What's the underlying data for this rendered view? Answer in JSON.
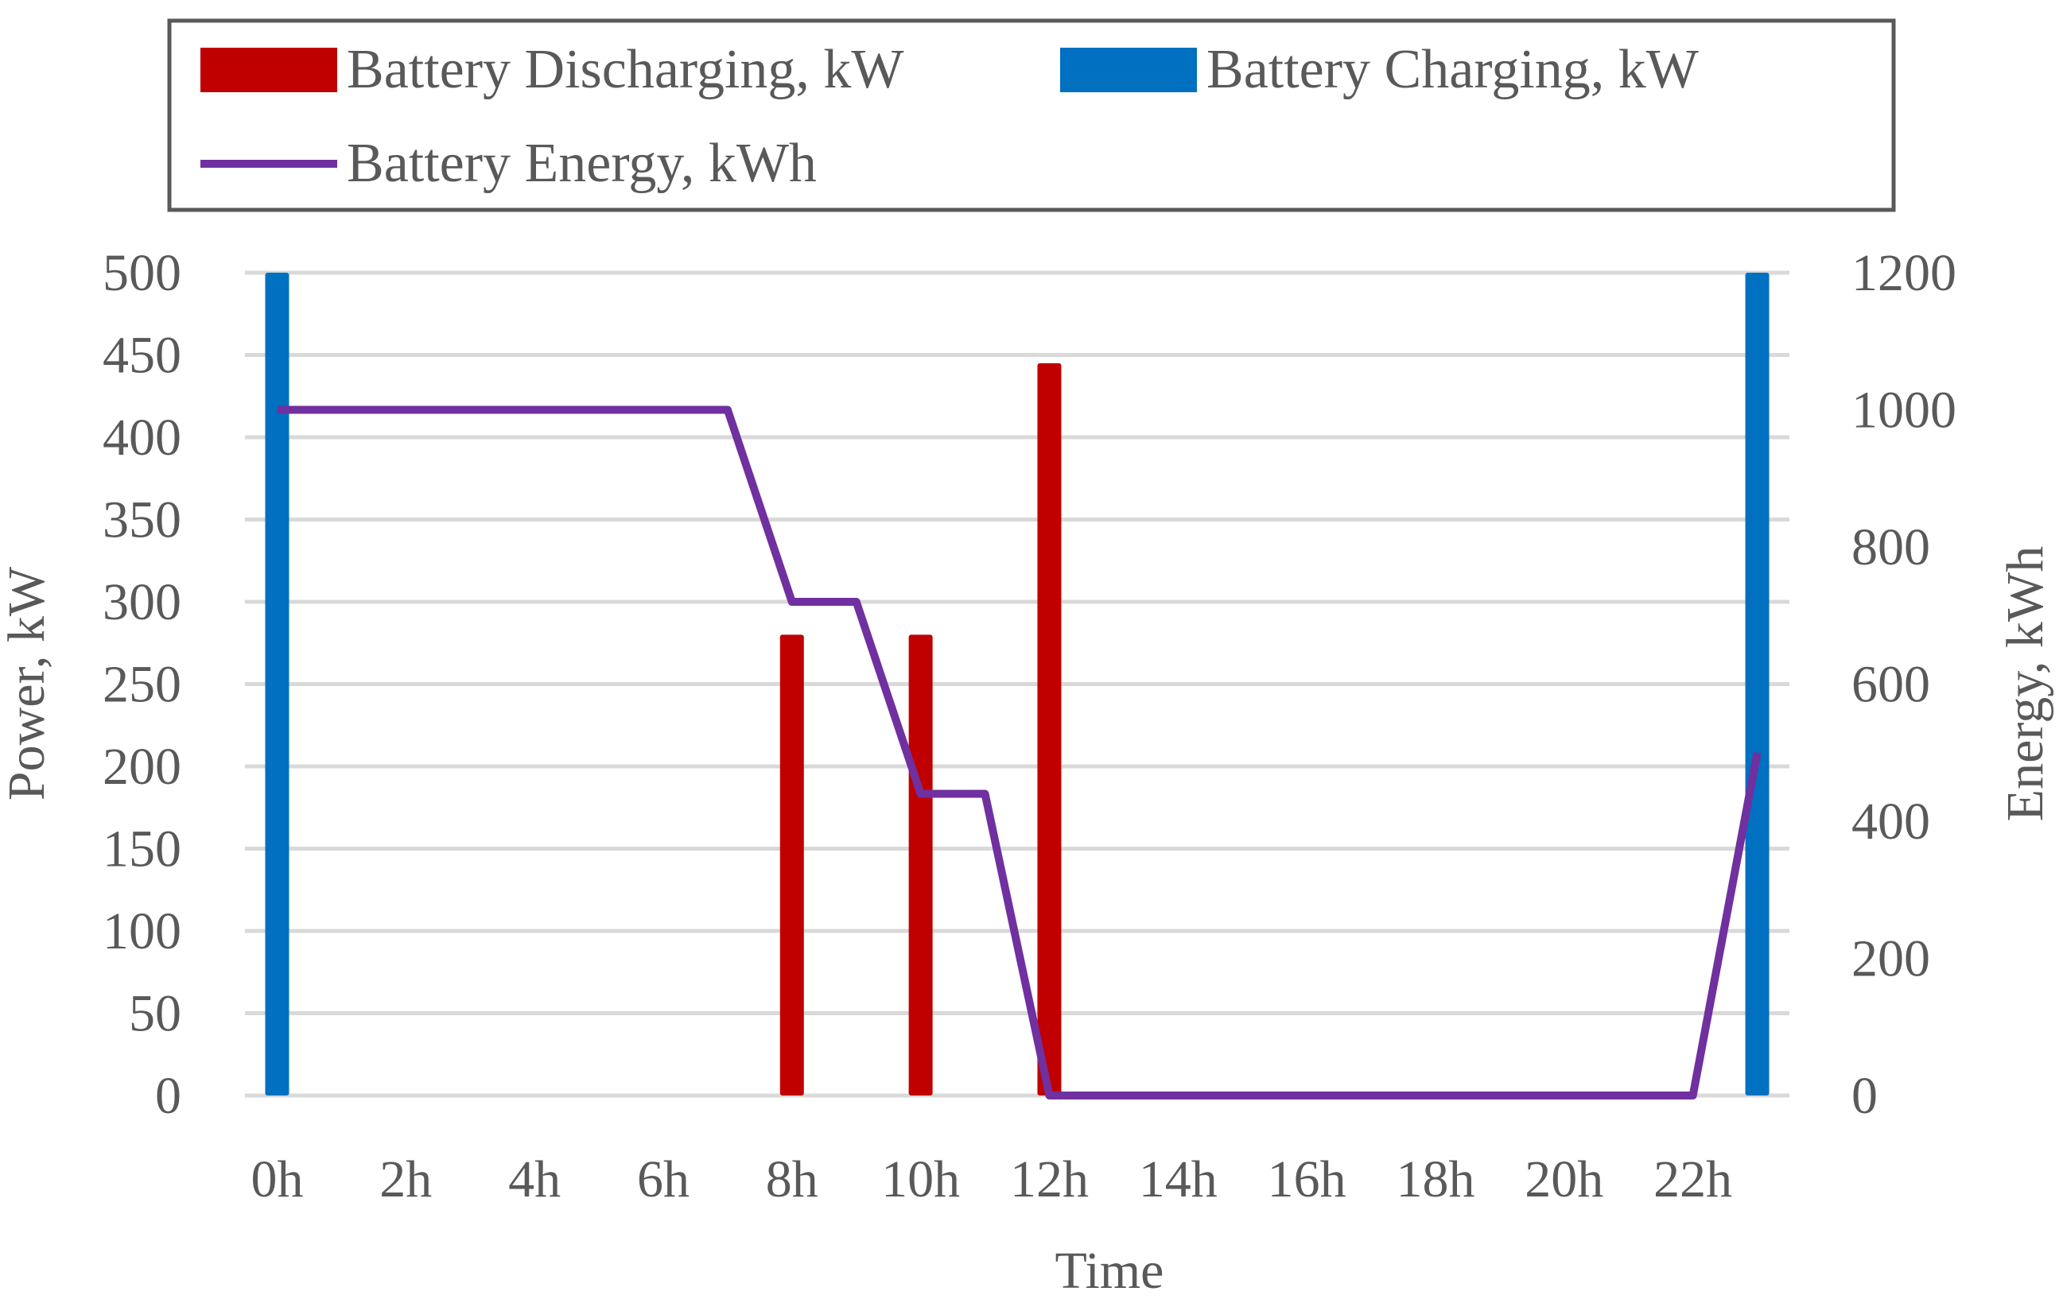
{
  "chart_data": {
    "type": "bar",
    "x": [
      "0h",
      "1h",
      "2h",
      "3h",
      "4h",
      "5h",
      "6h",
      "7h",
      "8h",
      "9h",
      "10h",
      "11h",
      "12h",
      "13h",
      "14h",
      "15h",
      "16h",
      "17h",
      "18h",
      "19h",
      "20h",
      "21h",
      "22h",
      "23h"
    ],
    "x_tick_labels": [
      "0h",
      "2h",
      "4h",
      "6h",
      "8h",
      "10h",
      "12h",
      "14h",
      "16h",
      "18h",
      "20h",
      "22h"
    ],
    "series": [
      {
        "name": "Battery Discharging, kW",
        "kind": "bar",
        "axis": "left",
        "color": "#C00000",
        "values": [
          0,
          0,
          0,
          0,
          0,
          0,
          0,
          0,
          280,
          0,
          280,
          0,
          445,
          0,
          0,
          0,
          0,
          0,
          0,
          0,
          0,
          0,
          0,
          0
        ]
      },
      {
        "name": "Battery Charging, kW",
        "kind": "bar",
        "axis": "left",
        "color": "#0070C0",
        "values": [
          500,
          0,
          0,
          0,
          0,
          0,
          0,
          0,
          0,
          0,
          0,
          0,
          0,
          0,
          0,
          0,
          0,
          0,
          0,
          0,
          0,
          0,
          0,
          500
        ]
      },
      {
        "name": "Battery Energy, kWh",
        "kind": "line",
        "axis": "right",
        "color": "#7030A0",
        "values": [
          1000,
          1000,
          1000,
          1000,
          1000,
          1000,
          1000,
          1000,
          720,
          720,
          440,
          440,
          0,
          0,
          0,
          0,
          0,
          0,
          0,
          0,
          0,
          0,
          0,
          500
        ]
      }
    ],
    "xlabel": "Time",
    "ylabel": "Power, kW",
    "y2label": "Energy, kWh",
    "ylim": [
      0,
      500
    ],
    "y2lim": [
      0,
      1200
    ],
    "yticks": [
      0,
      50,
      100,
      150,
      200,
      250,
      300,
      350,
      400,
      450,
      500
    ],
    "y2ticks": [
      0,
      200,
      400,
      600,
      800,
      1000,
      1200
    ],
    "grid": true,
    "legend_position": "top"
  }
}
